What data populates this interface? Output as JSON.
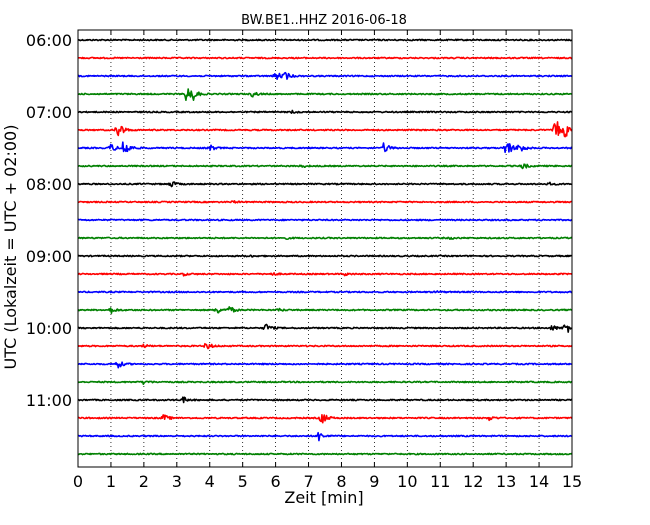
{
  "chart_data": {
    "type": "line",
    "title": "BW.BE1..HHZ 2016-06-18",
    "xlabel": "Zeit  [min]",
    "ylabel": "UTC (Lokalzeit = UTC + 02:00)",
    "xlim": [
      0,
      15
    ],
    "x_ticks": [
      "0",
      "1",
      "2",
      "3",
      "4",
      "5",
      "6",
      "7",
      "8",
      "9",
      "10",
      "11",
      "12",
      "13",
      "14",
      "15"
    ],
    "y_tick_labels": [
      "06:00",
      "07:00",
      "08:00",
      "09:00",
      "10:00",
      "11:00"
    ],
    "grid": true,
    "trace_colors": [
      "#000000",
      "#ff0000",
      "#0000ff",
      "#008000"
    ],
    "traces": [
      {
        "start": "06:00",
        "color_index": 0,
        "events": []
      },
      {
        "start": "06:15",
        "color_index": 1,
        "events": []
      },
      {
        "start": "06:30",
        "color_index": 2,
        "events": [
          {
            "t": 6.0,
            "amp": 0.55
          },
          {
            "t": 6.3,
            "amp": 0.4
          }
        ]
      },
      {
        "start": "06:45",
        "color_index": 3,
        "events": [
          {
            "t": 3.3,
            "amp": 0.9
          },
          {
            "t": 3.5,
            "amp": 0.5
          },
          {
            "t": 5.3,
            "amp": 0.3
          }
        ]
      },
      {
        "start": "07:00",
        "color_index": 0,
        "events": [
          {
            "t": 6.5,
            "amp": 0.15
          }
        ]
      },
      {
        "start": "07:15",
        "color_index": 1,
        "events": [
          {
            "t": 1.2,
            "amp": 1.2
          },
          {
            "t": 14.5,
            "amp": 1.4
          },
          {
            "t": 14.8,
            "amp": 0.7
          }
        ]
      },
      {
        "start": "07:30",
        "color_index": 2,
        "events": [
          {
            "t": 1.4,
            "amp": 1.2
          },
          {
            "t": 1.0,
            "amp": 0.5
          },
          {
            "t": 4.0,
            "amp": 0.35
          },
          {
            "t": 9.3,
            "amp": 0.6
          },
          {
            "t": 13.0,
            "amp": 1.2
          },
          {
            "t": 13.4,
            "amp": 0.6
          }
        ]
      },
      {
        "start": "07:45",
        "color_index": 3,
        "events": [
          {
            "t": 13.5,
            "amp": 0.35
          },
          {
            "t": 6.8,
            "amp": 0.15
          }
        ]
      },
      {
        "start": "08:00",
        "color_index": 0,
        "events": [
          {
            "t": 2.8,
            "amp": 0.4
          },
          {
            "t": 14.3,
            "amp": 0.15
          }
        ]
      },
      {
        "start": "08:15",
        "color_index": 1,
        "events": [
          {
            "t": 4.7,
            "amp": 0.1
          }
        ]
      },
      {
        "start": "08:30",
        "color_index": 2,
        "events": []
      },
      {
        "start": "08:45",
        "color_index": 3,
        "events": [
          {
            "t": 6.3,
            "amp": 0.1
          },
          {
            "t": 11.3,
            "amp": 0.1
          }
        ]
      },
      {
        "start": "09:00",
        "color_index": 0,
        "events": [
          {
            "t": 5.2,
            "amp": 0.1
          }
        ]
      },
      {
        "start": "09:15",
        "color_index": 1,
        "events": [
          {
            "t": 3.2,
            "amp": 0.15
          },
          {
            "t": 5.9,
            "amp": 0.15
          },
          {
            "t": 8.1,
            "amp": 0.15
          }
        ]
      },
      {
        "start": "09:30",
        "color_index": 2,
        "events": [
          {
            "t": 10.9,
            "amp": 0.1
          }
        ]
      },
      {
        "start": "09:45",
        "color_index": 3,
        "events": [
          {
            "t": 1.0,
            "amp": 0.35
          },
          {
            "t": 4.2,
            "amp": 0.5
          },
          {
            "t": 4.6,
            "amp": 0.4
          },
          {
            "t": 6.1,
            "amp": 0.15
          }
        ]
      },
      {
        "start": "10:00",
        "color_index": 0,
        "events": [
          {
            "t": 5.7,
            "amp": 0.5
          },
          {
            "t": 14.8,
            "amp": 0.8
          },
          {
            "t": 14.4,
            "amp": 0.3
          }
        ]
      },
      {
        "start": "10:15",
        "color_index": 1,
        "events": [
          {
            "t": 3.9,
            "amp": 0.45
          },
          {
            "t": 2.0,
            "amp": 0.15
          }
        ]
      },
      {
        "start": "10:30",
        "color_index": 2,
        "events": [
          {
            "t": 1.2,
            "amp": 0.5
          }
        ]
      },
      {
        "start": "10:45",
        "color_index": 3,
        "events": [
          {
            "t": 2.0,
            "amp": 0.2
          }
        ]
      },
      {
        "start": "11:00",
        "color_index": 0,
        "events": [
          {
            "t": 3.2,
            "amp": 0.3
          }
        ]
      },
      {
        "start": "11:15",
        "color_index": 1,
        "events": [
          {
            "t": 2.6,
            "amp": 0.4
          },
          {
            "t": 7.4,
            "amp": 0.8
          },
          {
            "t": 12.5,
            "amp": 0.25
          }
        ]
      },
      {
        "start": "11:30",
        "color_index": 2,
        "events": [
          {
            "t": 7.3,
            "amp": 0.55
          }
        ]
      },
      {
        "start": "11:45",
        "color_index": 3,
        "events": []
      }
    ]
  }
}
